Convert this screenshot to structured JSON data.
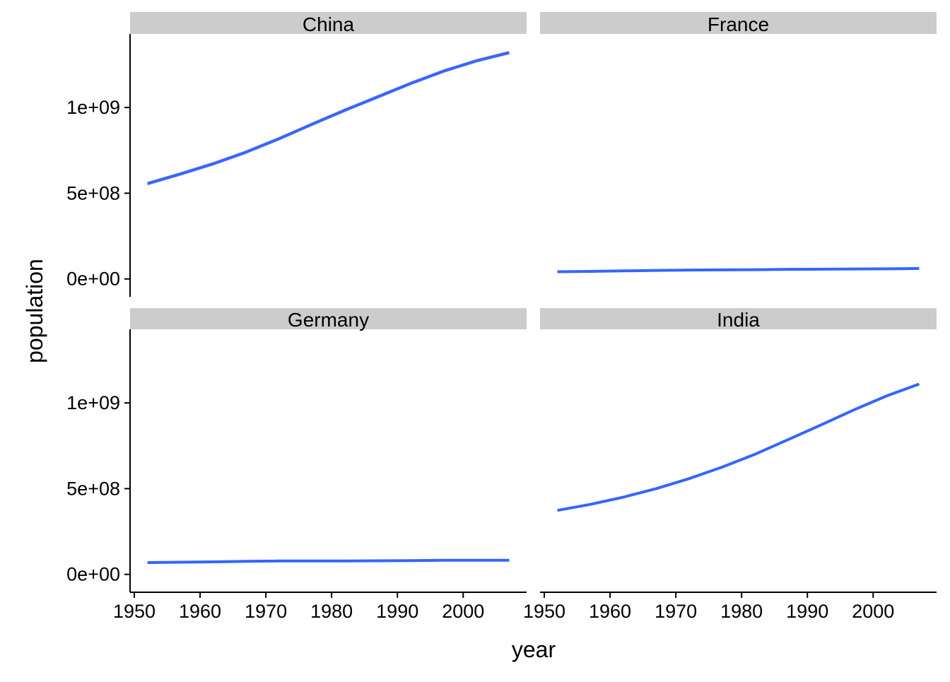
{
  "chart_data": {
    "type": "line",
    "xlabel": "year",
    "ylabel": "population",
    "xlim": [
      1950,
      2009
    ],
    "ylim": [
      0,
      1400000000
    ],
    "x_ticks": [
      1950,
      1960,
      1970,
      1980,
      1990,
      2000
    ],
    "x_tick_labels": [
      "1950",
      "1960",
      "1970",
      "1980",
      "1990",
      "2000"
    ],
    "y_ticks": [
      0,
      500000000,
      1000000000
    ],
    "y_tick_labels": [
      "0e+00",
      "5e+08",
      "1e+09"
    ],
    "grid": false,
    "confidence_band": true,
    "series_color": "#3366FF",
    "band_color": "#BBBBBB",
    "strip_color": "#CCCCCC",
    "panels": [
      {
        "title": "China",
        "x": [
          1952,
          1957,
          1962,
          1967,
          1972,
          1977,
          1982,
          1987,
          1992,
          1997,
          2002,
          2007
        ],
        "values": [
          556000000,
          612000000,
          672000000,
          740000000,
          818000000,
          902000000,
          984000000,
          1062000000,
          1140000000,
          1212000000,
          1272000000,
          1320000000
        ],
        "band": 12000000
      },
      {
        "title": "France",
        "x": [
          1952,
          1957,
          1962,
          1967,
          1972,
          1977,
          1982,
          1987,
          1992,
          1997,
          2002,
          2007
        ],
        "values": [
          42000000,
          44000000,
          47000000,
          50000000,
          52000000,
          53000000,
          54000000,
          56000000,
          57000000,
          58000000,
          59000000,
          61000000
        ],
        "band": 0
      },
      {
        "title": "Germany",
        "x": [
          1952,
          1957,
          1962,
          1967,
          1972,
          1977,
          1982,
          1987,
          1992,
          1997,
          2002,
          2007
        ],
        "values": [
          69000000,
          71000000,
          73000000,
          76000000,
          78000000,
          78000000,
          78000000,
          79000000,
          80000000,
          82000000,
          82000000,
          82000000
        ],
        "band": 0
      },
      {
        "title": "India",
        "x": [
          1952,
          1957,
          1962,
          1967,
          1972,
          1977,
          1982,
          1987,
          1992,
          1997,
          2002,
          2007
        ],
        "values": [
          373000000,
          408000000,
          450000000,
          500000000,
          558000000,
          625000000,
          700000000,
          785000000,
          870000000,
          958000000,
          1040000000,
          1110000000
        ],
        "band": 0
      }
    ]
  }
}
